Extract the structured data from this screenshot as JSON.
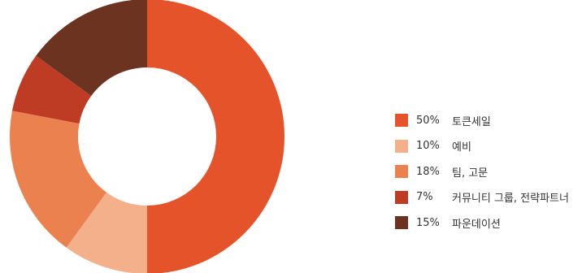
{
  "chart_data": {
    "type": "pie",
    "donut": true,
    "title": "",
    "legend_position": "right",
    "slices": [
      {
        "label": "토큰세일",
        "value": 50,
        "value_label": "50%",
        "color": "#E5532A"
      },
      {
        "label": "예비",
        "value": 10,
        "value_label": "10%",
        "color": "#F4B08B"
      },
      {
        "label": "팀, 고문",
        "value": 18,
        "value_label": "18%",
        "color": "#EC8150"
      },
      {
        "label": "커뮤니티 그룹, 전략파트너",
        "value": 7,
        "value_label": "7%",
        "color": "#BF3C24"
      },
      {
        "label": "파운데이션",
        "value": 15,
        "value_label": "15%",
        "color": "#6C3420"
      }
    ]
  }
}
